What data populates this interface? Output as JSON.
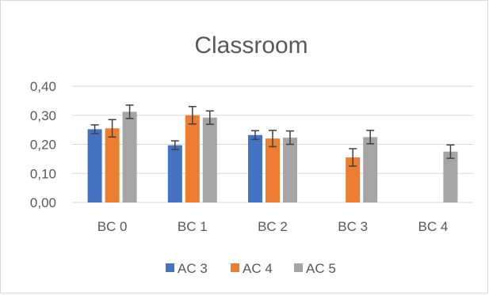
{
  "chart_data": {
    "type": "bar",
    "title": "Classroom",
    "xlabel": "",
    "ylabel": "",
    "categories": [
      "BC 0",
      "BC 1",
      "BC 2",
      "BC 3",
      "BC 4"
    ],
    "ylim": [
      0,
      0.4
    ],
    "yticks": [
      "0,00",
      "0,10",
      "0,20",
      "0,30",
      "0,40"
    ],
    "ytick_values": [
      0,
      0.1,
      0.2,
      0.3,
      0.4
    ],
    "grid": true,
    "legend_position": "bottom",
    "error_bars": true,
    "series": [
      {
        "name": "AC 3",
        "color": "#4472c4",
        "values": [
          0.252,
          0.197,
          0.232,
          null,
          null
        ],
        "errors": [
          0.015,
          0.015,
          0.015,
          null,
          null
        ]
      },
      {
        "name": "AC 4",
        "color": "#ed7d31",
        "values": [
          0.255,
          0.3,
          0.22,
          0.155,
          null
        ],
        "errors": [
          0.03,
          0.03,
          0.028,
          0.03,
          null
        ]
      },
      {
        "name": "AC 5",
        "color": "#a5a5a5",
        "values": [
          0.312,
          0.292,
          0.223,
          0.225,
          0.175
        ],
        "errors": [
          0.023,
          0.023,
          0.023,
          0.023,
          0.023
        ]
      }
    ]
  }
}
